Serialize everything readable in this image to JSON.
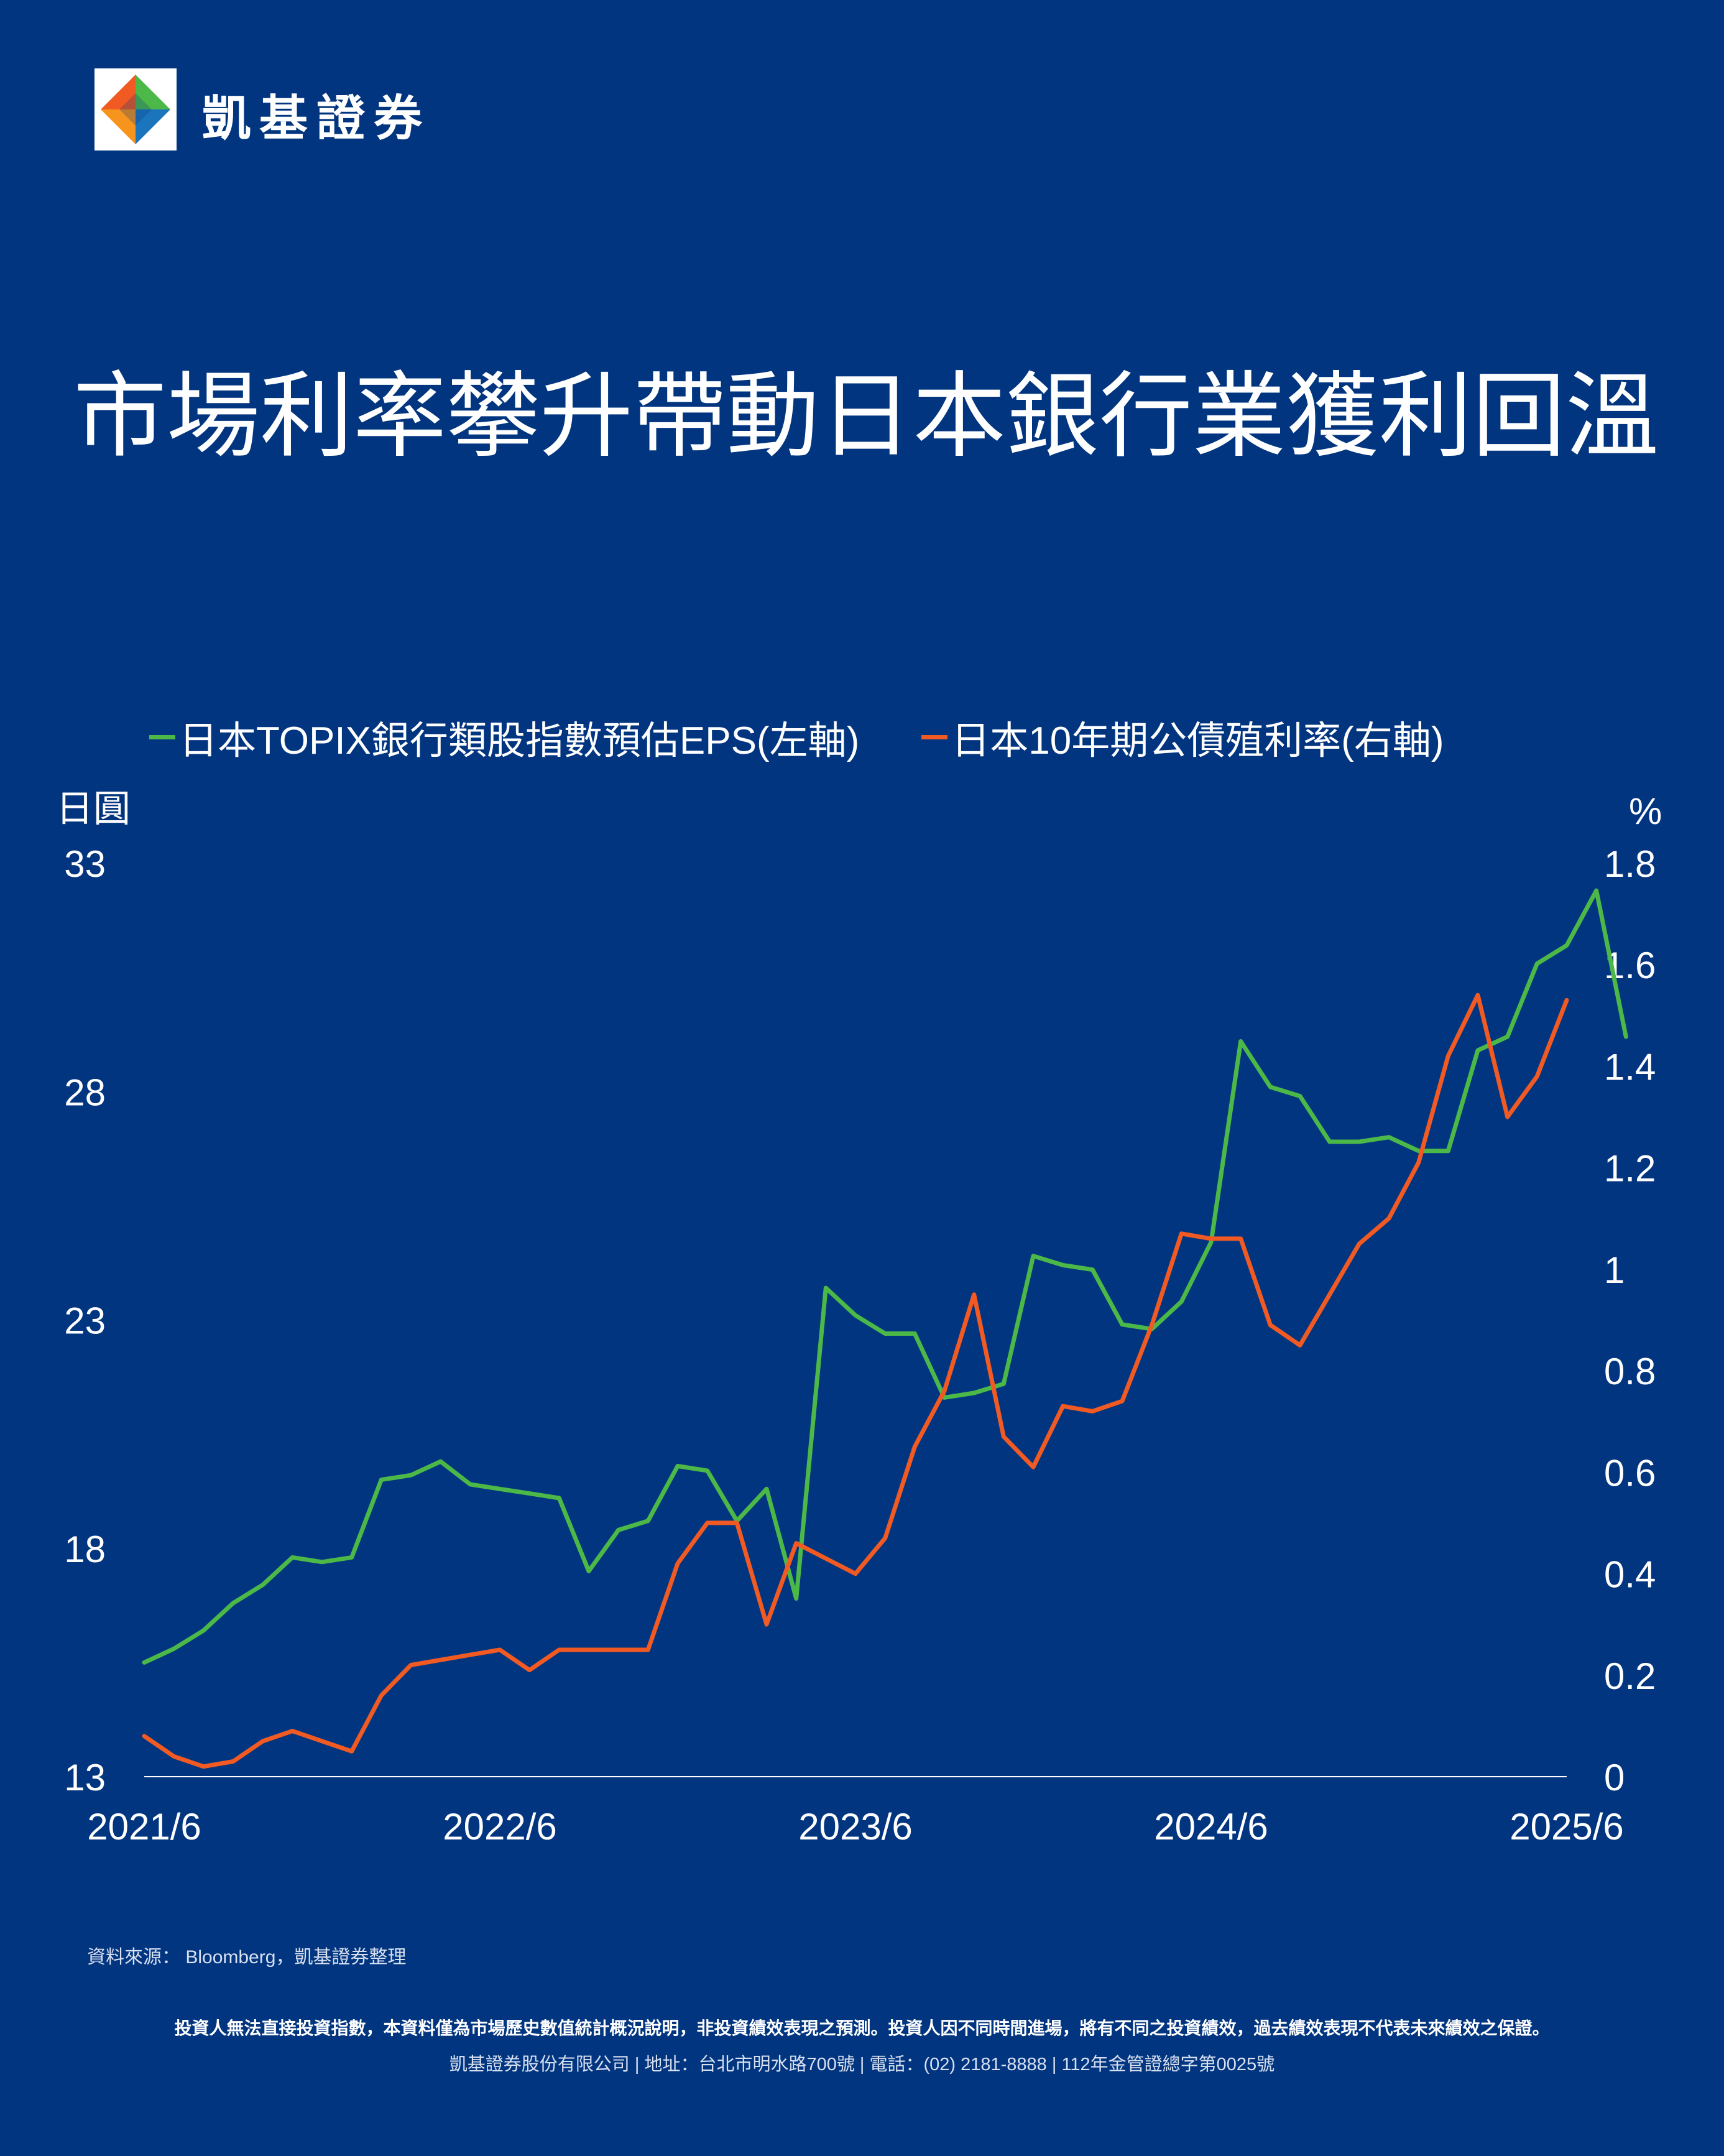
{
  "brand": {
    "name": "凱基證券"
  },
  "title": "市場利率攀升帶動日本銀行業獲利回溫",
  "legend": [
    {
      "label": "日本TOPIX銀行類股指數預估EPS(左軸)",
      "color": "#4CB848"
    },
    {
      "label": "日本10年期公債殖利率(右軸)",
      "color": "#F15A22"
    }
  ],
  "units": {
    "left": "日圓",
    "right": "%"
  },
  "chart_data": {
    "type": "line",
    "x_ticks": [
      "2021/6",
      "2022/6",
      "2023/6",
      "2024/6",
      "2025/6"
    ],
    "x_range": [
      "2021-06",
      "2025-06"
    ],
    "y_left": {
      "ylim": [
        13,
        33
      ],
      "ticks": [
        "13",
        "18",
        "23",
        "28",
        "33"
      ]
    },
    "y_right": {
      "ylim": [
        0,
        1.8
      ],
      "ticks": [
        "0",
        "0.2",
        "0.4",
        "0.6",
        "0.8",
        "1",
        "1.2",
        "1.4",
        "1.6",
        "1.8"
      ]
    },
    "grid": false,
    "series": [
      {
        "name": "日本TOPIX銀行類股指數預估EPS(左軸)",
        "axis": "left",
        "color": "#4CB848",
        "points": [
          [
            "2021-06",
            15.5
          ],
          [
            "2021-07",
            15.8
          ],
          [
            "2021-08",
            16.2
          ],
          [
            "2021-09",
            16.8
          ],
          [
            "2021-10",
            17.2
          ],
          [
            "2021-11",
            17.8
          ],
          [
            "2021-12",
            17.7
          ],
          [
            "2022-01",
            17.8
          ],
          [
            "2022-02",
            19.5
          ],
          [
            "2022-03",
            19.6
          ],
          [
            "2022-04",
            19.9
          ],
          [
            "2022-05",
            19.4
          ],
          [
            "2022-06",
            19.3
          ],
          [
            "2022-07",
            19.2
          ],
          [
            "2022-08",
            19.1
          ],
          [
            "2022-09",
            17.5
          ],
          [
            "2022-10",
            18.4
          ],
          [
            "2022-11",
            18.6
          ],
          [
            "2022-12",
            19.8
          ],
          [
            "2023-01",
            19.7
          ],
          [
            "2023-02",
            18.6
          ],
          [
            "2023-03",
            19.3
          ],
          [
            "2023-04",
            16.9
          ],
          [
            "2023-05",
            23.7
          ],
          [
            "2023-06",
            23.1
          ],
          [
            "2023-07",
            22.7
          ],
          [
            "2023-08",
            22.7
          ],
          [
            "2023-09",
            21.3
          ],
          [
            "2023-10",
            21.4
          ],
          [
            "2023-11",
            21.6
          ],
          [
            "2023-12",
            24.4
          ],
          [
            "2024-01",
            24.2
          ],
          [
            "2024-02",
            24.1
          ],
          [
            "2024-03",
            22.9
          ],
          [
            "2024-04",
            22.8
          ],
          [
            "2024-05",
            23.4
          ],
          [
            "2024-06",
            24.7
          ],
          [
            "2024-07",
            29.1
          ],
          [
            "2024-08",
            28.1
          ],
          [
            "2024-09",
            27.9
          ],
          [
            "2024-10",
            26.9
          ],
          [
            "2024-11",
            26.9
          ],
          [
            "2024-12",
            27.0
          ],
          [
            "2025-01",
            26.7
          ],
          [
            "2025-02",
            26.7
          ],
          [
            "2025-03",
            28.9
          ],
          [
            "2025-04",
            29.2
          ],
          [
            "2025-05",
            30.8
          ],
          [
            "2025-06",
            31.2
          ],
          [
            "2025-07",
            32.4
          ],
          [
            "2025-08",
            29.2
          ]
        ]
      },
      {
        "name": "日本10年期公債殖利率(右軸)",
        "axis": "right",
        "color": "#F15A22",
        "points": [
          [
            "2021-06",
            0.08
          ],
          [
            "2021-07",
            0.04
          ],
          [
            "2021-08",
            0.02
          ],
          [
            "2021-09",
            0.03
          ],
          [
            "2021-10",
            0.07
          ],
          [
            "2021-11",
            0.09
          ],
          [
            "2021-12",
            0.07
          ],
          [
            "2022-01",
            0.05
          ],
          [
            "2022-02",
            0.16
          ],
          [
            "2022-03",
            0.22
          ],
          [
            "2022-04",
            0.23
          ],
          [
            "2022-05",
            0.24
          ],
          [
            "2022-06",
            0.25
          ],
          [
            "2022-07",
            0.21
          ],
          [
            "2022-08",
            0.25
          ],
          [
            "2022-09",
            0.25
          ],
          [
            "2022-10",
            0.25
          ],
          [
            "2022-11",
            0.25
          ],
          [
            "2022-12",
            0.42
          ],
          [
            "2023-01",
            0.5
          ],
          [
            "2023-02",
            0.5
          ],
          [
            "2023-03",
            0.3
          ],
          [
            "2023-04",
            0.46
          ],
          [
            "2023-05",
            0.43
          ],
          [
            "2023-06",
            0.4
          ],
          [
            "2023-07",
            0.47
          ],
          [
            "2023-08",
            0.65
          ],
          [
            "2023-09",
            0.76
          ],
          [
            "2023-10",
            0.95
          ],
          [
            "2023-11",
            0.67
          ],
          [
            "2023-12",
            0.61
          ],
          [
            "2024-01",
            0.73
          ],
          [
            "2024-02",
            0.72
          ],
          [
            "2024-03",
            0.74
          ],
          [
            "2024-04",
            0.89
          ],
          [
            "2024-05",
            1.07
          ],
          [
            "2024-06",
            1.06
          ],
          [
            "2024-07",
            1.06
          ],
          [
            "2024-08",
            0.89
          ],
          [
            "2024-09",
            0.85
          ],
          [
            "2024-10",
            0.95
          ],
          [
            "2024-11",
            1.05
          ],
          [
            "2024-12",
            1.1
          ],
          [
            "2025-01",
            1.21
          ],
          [
            "2025-02",
            1.42
          ],
          [
            "2025-03",
            1.54
          ],
          [
            "2025-04",
            1.3
          ],
          [
            "2025-05",
            1.38
          ],
          [
            "2025-06",
            1.53
          ]
        ]
      }
    ]
  },
  "footer": {
    "source": "資料來源： Bloomberg，凱基證券整理",
    "disclaimer": "投資人無法直接投資指數，本資料僅為市場歷史數值統計概況說明，非投資績效表現之預測。投資人因不同時間進場，將有不同之投資績效，過去績效表現不代表未來績效之保證。",
    "company": "凱基證券股份有限公司 | 地址：台北市明水路700號 | 電話：(02) 2181-8888 | 112年金管證總字第0025號"
  }
}
